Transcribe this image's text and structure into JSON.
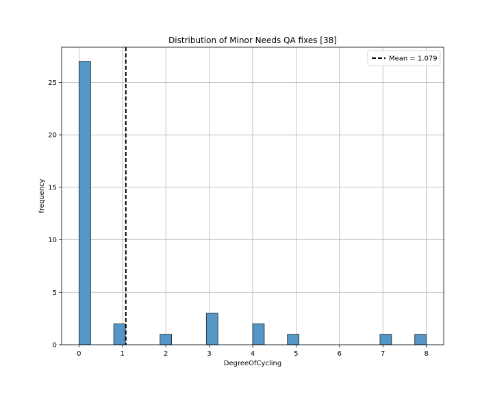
{
  "chart_data": {
    "type": "bar",
    "title": "Distribution of Minor Needs QA fixes [38]",
    "xlabel": "DegreeOfCycling",
    "ylabel": "frequency",
    "xlim": [
      -0.4,
      8.4
    ],
    "ylim": [
      0,
      28.35
    ],
    "xticks": [
      0,
      1,
      2,
      3,
      4,
      5,
      6,
      7,
      8
    ],
    "yticks": [
      0,
      5,
      10,
      15,
      20,
      25
    ],
    "bins": [
      {
        "start": 0.0,
        "end": 0.267,
        "count": 27
      },
      {
        "start": 0.8,
        "end": 1.067,
        "count": 2
      },
      {
        "start": 1.867,
        "end": 2.133,
        "count": 1
      },
      {
        "start": 2.933,
        "end": 3.2,
        "count": 3
      },
      {
        "start": 4.0,
        "end": 4.267,
        "count": 2
      },
      {
        "start": 4.8,
        "end": 5.067,
        "count": 1
      },
      {
        "start": 6.933,
        "end": 7.2,
        "count": 1
      },
      {
        "start": 7.733,
        "end": 8.0,
        "count": 1
      }
    ],
    "mean": 1.079,
    "legend": [
      {
        "label": "Mean = 1.079",
        "style": "dashed",
        "color": "#000000"
      }
    ],
    "legend_position": "top-right",
    "grid": true,
    "colors": {
      "bar_fill": "#5497c6",
      "bar_edge": "#1f1f1f",
      "grid": "#b0b0b0",
      "mean_line": "#000000"
    }
  }
}
